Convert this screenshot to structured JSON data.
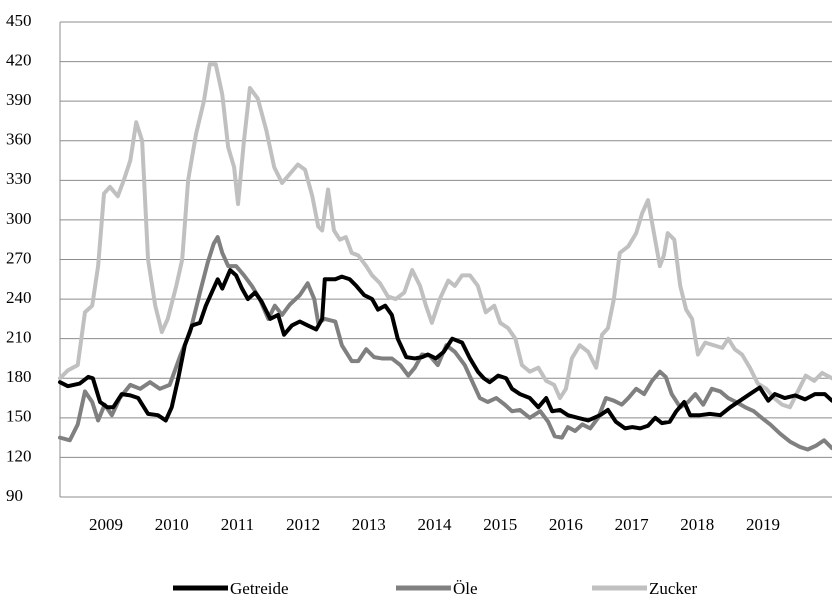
{
  "chart_data": {
    "type": "line",
    "xlim": [
      2008.8,
      2020.55
    ],
    "xticks": [
      {
        "value": 2009.5,
        "label": "2009"
      },
      {
        "value": 2010.5,
        "label": "2010"
      },
      {
        "value": 2011.5,
        "label": "2011"
      },
      {
        "value": 2012.5,
        "label": "2012"
      },
      {
        "value": 2013.5,
        "label": "2013"
      },
      {
        "value": 2014.5,
        "label": "2014"
      },
      {
        "value": 2015.5,
        "label": "2015"
      },
      {
        "value": 2016.5,
        "label": "2016"
      },
      {
        "value": 2017.5,
        "label": "2017"
      },
      {
        "value": 2018.5,
        "label": "2018"
      },
      {
        "value": 2019.5,
        "label": "2019"
      }
    ],
    "ylim": [
      90,
      450
    ],
    "yticks": [
      90,
      120,
      150,
      180,
      210,
      240,
      270,
      300,
      330,
      360,
      390,
      420,
      450
    ],
    "grid": true,
    "legend": "bottom",
    "series": [
      {
        "name": "Getreide",
        "color": "#000000",
        "x": [
          2008.8,
          2008.92,
          2009.1,
          2009.23,
          2009.3,
          2009.41,
          2009.52,
          2009.61,
          2009.74,
          2009.87,
          2009.99,
          2010.14,
          2010.29,
          2010.41,
          2010.5,
          2010.6,
          2010.7,
          2010.81,
          2010.93,
          2011.02,
          2011.11,
          2011.2,
          2011.27,
          2011.39,
          2011.48,
          2011.57,
          2011.66,
          2011.77,
          2011.87,
          2012.0,
          2012.12,
          2012.21,
          2012.33,
          2012.45,
          2012.57,
          2012.7,
          2012.79,
          2012.83,
          2012.99,
          2013.09,
          2013.21,
          2013.31,
          2013.43,
          2013.55,
          2013.64,
          2013.75,
          2013.85,
          2013.94,
          2014.07,
          2014.2,
          2014.31,
          2014.4,
          2014.52,
          2014.64,
          2014.77,
          2014.92,
          2015.04,
          2015.16,
          2015.25,
          2015.34,
          2015.47,
          2015.59,
          2015.68,
          2015.8,
          2015.95,
          2016.08,
          2016.2,
          2016.29,
          2016.41,
          2016.53,
          2016.68,
          2016.84,
          2017.02,
          2017.14,
          2017.26,
          2017.4,
          2017.51,
          2017.63,
          2017.75,
          2017.86,
          2017.96,
          2018.08,
          2018.18,
          2018.3,
          2018.39,
          2018.54,
          2018.69,
          2018.85,
          2019.0,
          2019.15,
          2019.3,
          2019.45,
          2019.58,
          2019.68,
          2019.83,
          2019.99,
          2020.14,
          2020.29,
          2020.44,
          2020.55
        ],
        "values": [
          177,
          174,
          176,
          181,
          180,
          162,
          158,
          158,
          168,
          167,
          165,
          153,
          152,
          148,
          158,
          180,
          205,
          220,
          222,
          235,
          245,
          255,
          248,
          262,
          258,
          248,
          240,
          245,
          238,
          225,
          228,
          213,
          220,
          223,
          220,
          217,
          225,
          255,
          255,
          257,
          255,
          250,
          243,
          240,
          232,
          235,
          228,
          210,
          196,
          195,
          196,
          198,
          195,
          200,
          210,
          207,
          195,
          185,
          180,
          177,
          182,
          180,
          172,
          168,
          165,
          158,
          165,
          155,
          156,
          152,
          150,
          148,
          152,
          156,
          147,
          142,
          143,
          142,
          144,
          150,
          146,
          147,
          155,
          162,
          152,
          152,
          153,
          152,
          158,
          163,
          168,
          173,
          163,
          168,
          165,
          167,
          164,
          168,
          168,
          163
        ]
      },
      {
        "name": "Öle",
        "color": "#808080",
        "x": [
          2008.8,
          2008.95,
          2009.07,
          2009.18,
          2009.29,
          2009.38,
          2009.48,
          2009.59,
          2009.71,
          2009.87,
          2010.02,
          2010.17,
          2010.32,
          2010.47,
          2010.63,
          2010.78,
          2010.93,
          2011.05,
          2011.14,
          2011.2,
          2011.27,
          2011.36,
          2011.48,
          2011.6,
          2011.72,
          2011.84,
          2011.97,
          2012.07,
          2012.18,
          2012.3,
          2012.45,
          2012.57,
          2012.67,
          2012.73,
          2012.83,
          2012.99,
          2013.09,
          2013.24,
          2013.34,
          2013.46,
          2013.58,
          2013.7,
          2013.85,
          2013.98,
          2014.1,
          2014.2,
          2014.31,
          2014.43,
          2014.55,
          2014.68,
          2014.81,
          2014.96,
          2015.07,
          2015.19,
          2015.31,
          2015.44,
          2015.57,
          2015.68,
          2015.8,
          2015.95,
          2016.11,
          2016.23,
          2016.33,
          2016.44,
          2016.53,
          2016.64,
          2016.75,
          2016.87,
          2016.99,
          2017.11,
          2017.23,
          2017.35,
          2017.45,
          2017.57,
          2017.69,
          2017.81,
          2017.93,
          2018.02,
          2018.11,
          2018.24,
          2018.36,
          2018.47,
          2018.59,
          2018.72,
          2018.85,
          2018.97,
          2019.09,
          2019.23,
          2019.36,
          2019.48,
          2019.61,
          2019.76,
          2019.91,
          2020.06,
          2020.18,
          2020.31,
          2020.43,
          2020.55
        ],
        "values": [
          135,
          133,
          145,
          170,
          162,
          148,
          160,
          152,
          165,
          175,
          172,
          177,
          172,
          175,
          197,
          215,
          245,
          268,
          282,
          287,
          275,
          265,
          265,
          258,
          250,
          240,
          225,
          235,
          228,
          236,
          243,
          252,
          240,
          222,
          225,
          223,
          205,
          193,
          193,
          202,
          196,
          195,
          195,
          190,
          182,
          188,
          198,
          197,
          190,
          205,
          200,
          190,
          178,
          165,
          162,
          165,
          160,
          155,
          156,
          150,
          155,
          147,
          136,
          135,
          143,
          140,
          145,
          142,
          150,
          165,
          163,
          160,
          165,
          172,
          168,
          178,
          185,
          181,
          168,
          158,
          162,
          168,
          160,
          172,
          170,
          165,
          162,
          158,
          155,
          150,
          145,
          138,
          132,
          128,
          126,
          129,
          133,
          127
        ]
      },
      {
        "name": "Zucker",
        "color": "#c0c0c0",
        "x": [
          2008.8,
          2008.92,
          2009.07,
          2009.18,
          2009.29,
          2009.38,
          2009.47,
          2009.56,
          2009.68,
          2009.77,
          2009.87,
          2009.96,
          2010.05,
          2010.14,
          2010.25,
          2010.35,
          2010.44,
          2010.57,
          2010.66,
          2010.75,
          2010.87,
          2010.99,
          2011.08,
          2011.17,
          2011.27,
          2011.36,
          2011.45,
          2011.51,
          2011.6,
          2011.69,
          2011.81,
          2011.94,
          2012.06,
          2012.18,
          2012.3,
          2012.42,
          2012.53,
          2012.64,
          2012.73,
          2012.79,
          2012.88,
          2012.97,
          2013.06,
          2013.15,
          2013.24,
          2013.34,
          2013.46,
          2013.55,
          2013.67,
          2013.79,
          2013.91,
          2014.04,
          2014.16,
          2014.28,
          2014.37,
          2014.46,
          2014.58,
          2014.71,
          2014.81,
          2014.92,
          2015.04,
          2015.16,
          2015.28,
          2015.41,
          2015.5,
          2015.62,
          2015.73,
          2015.83,
          2015.95,
          2016.08,
          2016.2,
          2016.32,
          2016.41,
          2016.5,
          2016.59,
          2016.71,
          2016.84,
          2016.96,
          2017.05,
          2017.14,
          2017.23,
          2017.32,
          2017.45,
          2017.57,
          2017.66,
          2017.75,
          2017.84,
          2017.93,
          2017.99,
          2018.05,
          2018.15,
          2018.24,
          2018.33,
          2018.42,
          2018.51,
          2018.62,
          2018.75,
          2018.88,
          2018.97,
          2019.07,
          2019.18,
          2019.3,
          2019.42,
          2019.55,
          2019.67,
          2019.79,
          2019.91,
          2020.03,
          2020.15,
          2020.28,
          2020.4,
          2020.55
        ],
        "values": [
          180,
          186,
          190,
          230,
          235,
          265,
          320,
          325,
          318,
          330,
          345,
          374,
          360,
          270,
          235,
          215,
          225,
          250,
          270,
          330,
          365,
          390,
          418,
          418,
          395,
          355,
          340,
          312,
          360,
          400,
          392,
          368,
          340,
          328,
          335,
          342,
          338,
          318,
          295,
          292,
          323,
          292,
          285,
          287,
          275,
          273,
          265,
          258,
          252,
          242,
          240,
          245,
          262,
          250,
          235,
          222,
          240,
          254,
          250,
          258,
          258,
          250,
          230,
          235,
          222,
          218,
          210,
          190,
          185,
          188,
          178,
          175,
          165,
          172,
          195,
          205,
          200,
          188,
          213,
          218,
          240,
          275,
          280,
          290,
          305,
          315,
          290,
          265,
          273,
          290,
          285,
          250,
          232,
          225,
          198,
          207,
          205,
          203,
          210,
          202,
          198,
          188,
          176,
          172,
          165,
          160,
          158,
          170,
          182,
          178,
          184,
          180
        ]
      }
    ]
  }
}
